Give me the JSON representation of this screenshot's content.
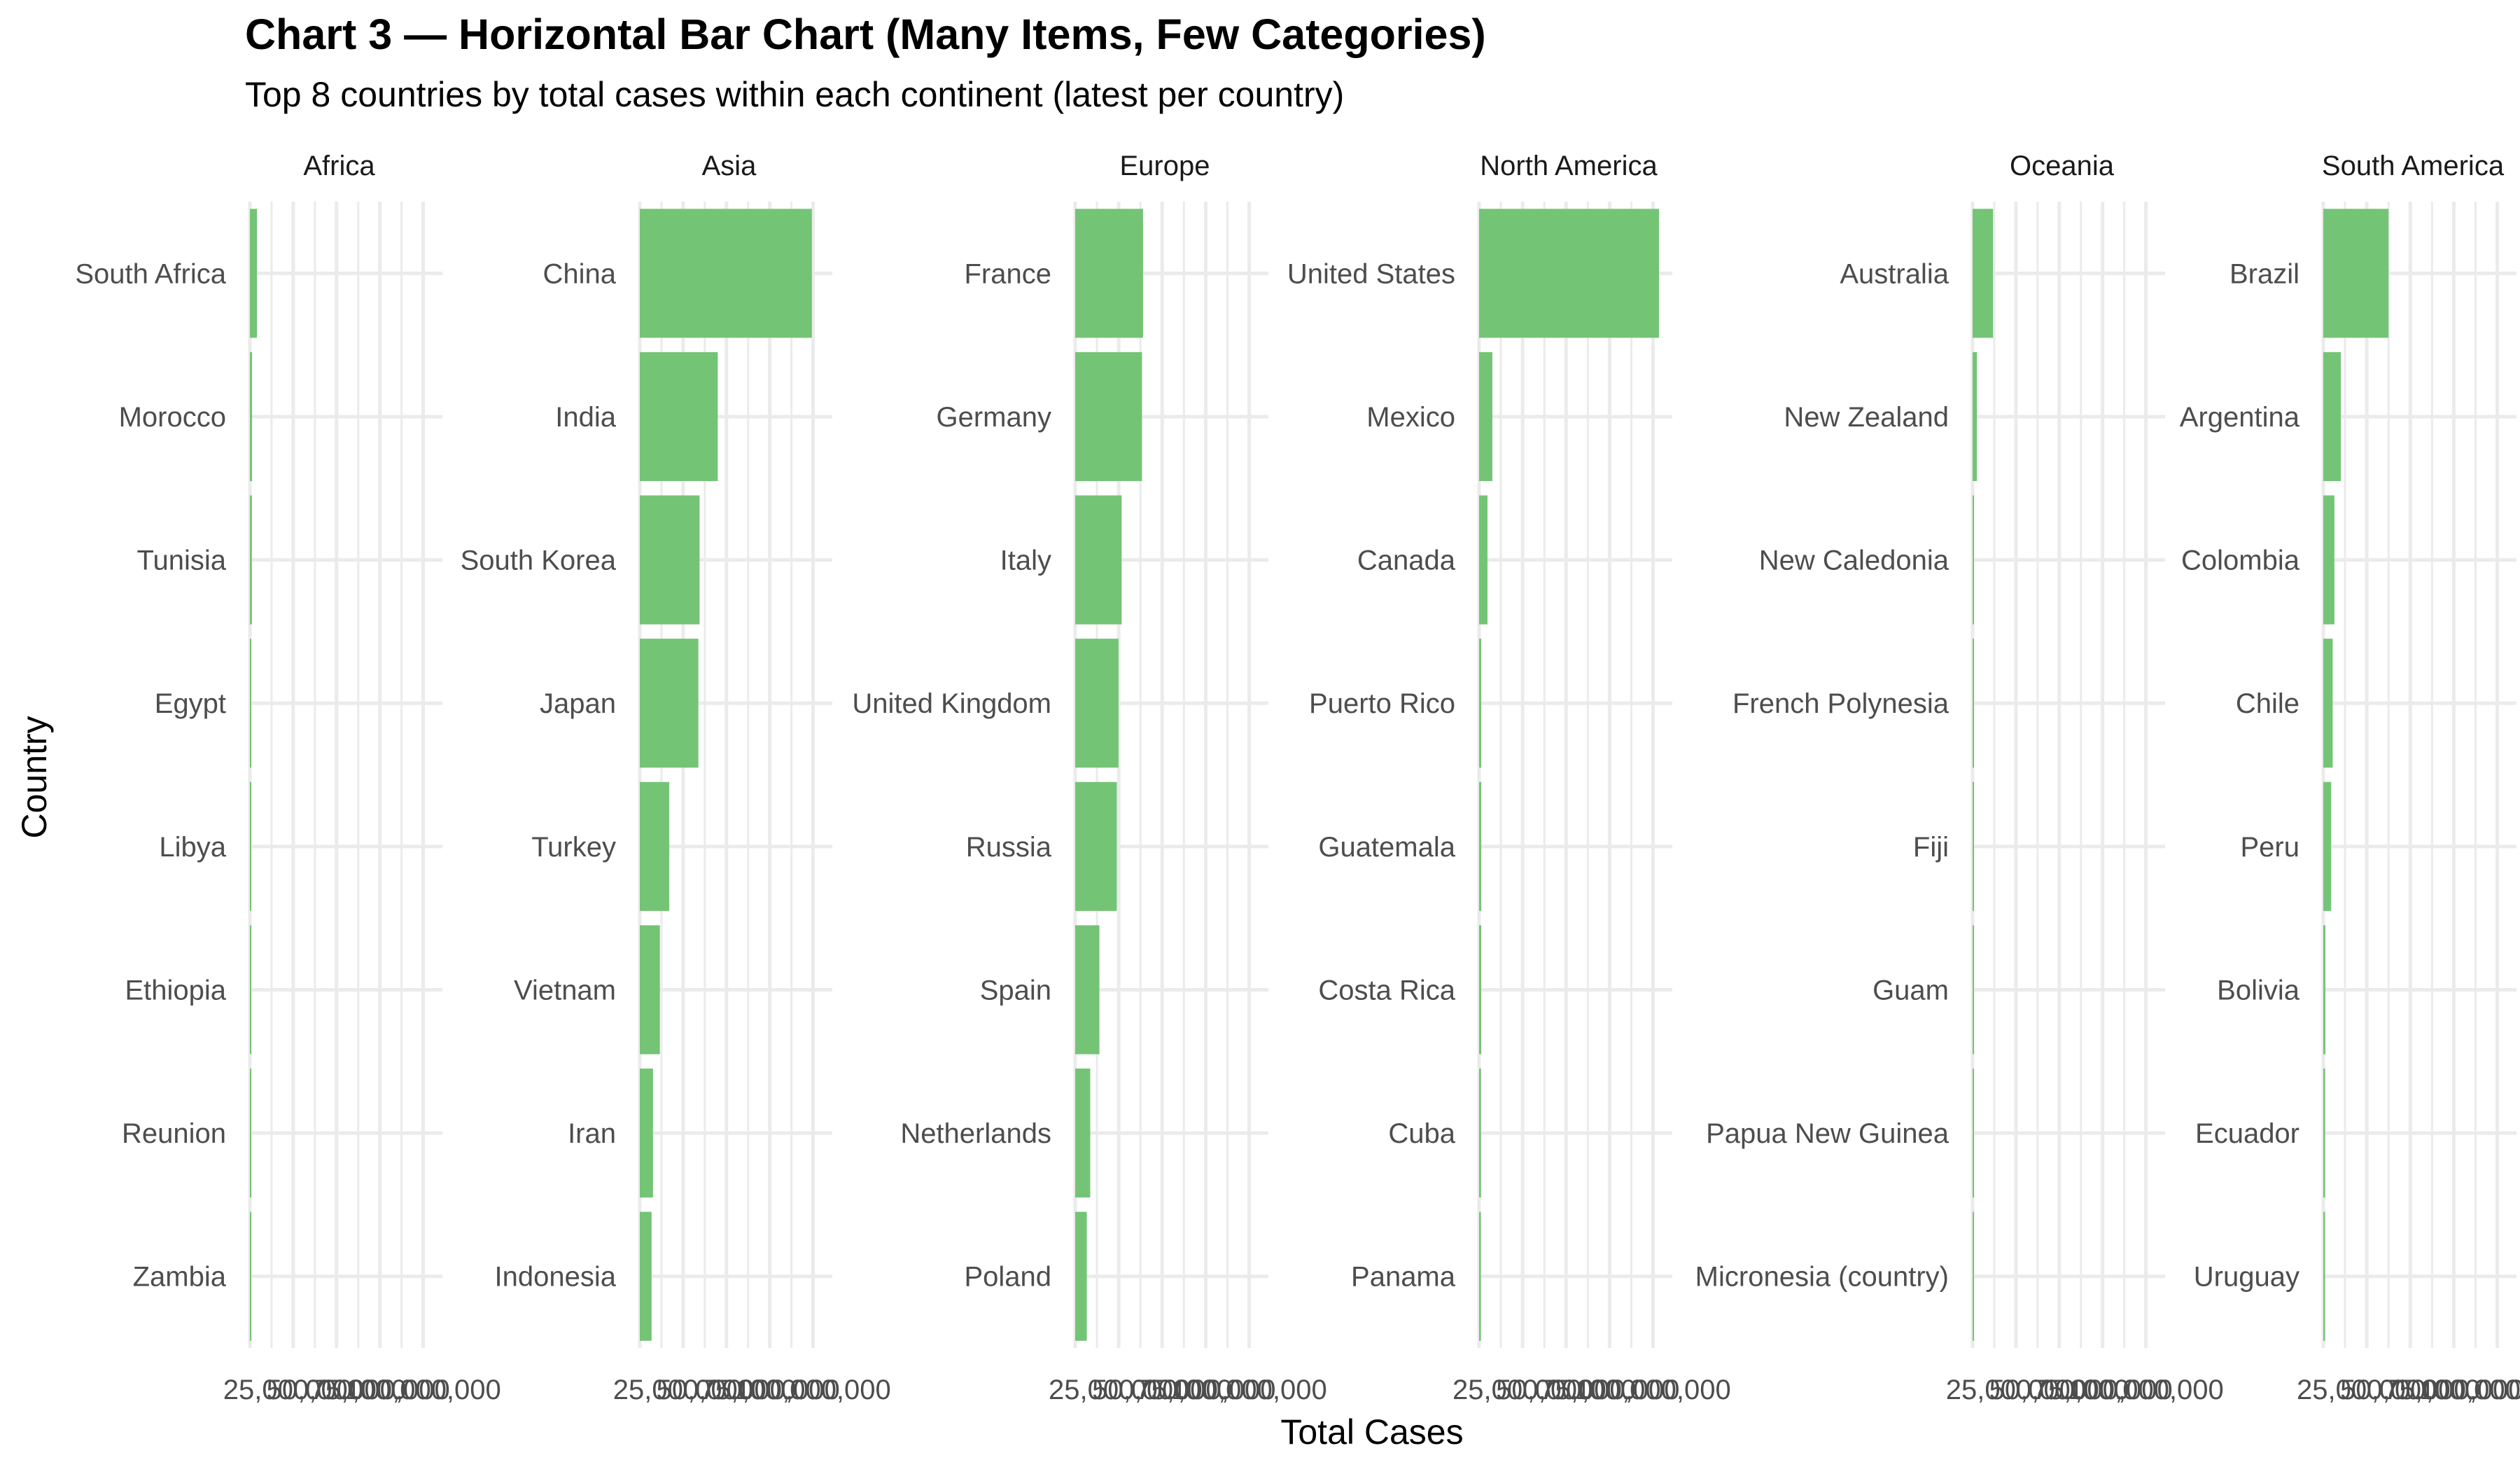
{
  "colors": {
    "bar": "#74C476",
    "grid": "#EBEBEB",
    "background": "#FFFFFF"
  },
  "chart_data": {
    "type": "bar",
    "orientation": "horizontal",
    "title": "Chart 3 — Horizontal Bar Chart (Many Items, Few Categories)",
    "subtitle": "Top 8 countries by total cases within each continent (latest per country)",
    "xlabel": "Total Cases",
    "ylabel": "Country",
    "xlim": [
      0,
      103000000
    ],
    "x_ticks": [
      25000000,
      50000000,
      75000000,
      100000000
    ],
    "x_tick_labels": [
      "25,000,000",
      "50,000,000",
      "75,000,000",
      "100,000,000"
    ],
    "grid": true,
    "legend": "none",
    "facets": [
      {
        "name": "Africa",
        "categories": [
          "South Africa",
          "Morocco",
          "Tunisia",
          "Egypt",
          "Libya",
          "Ethiopia",
          "Reunion",
          "Zambia"
        ],
        "values": [
          4070000,
          1270000,
          1150000,
          516000,
          507000,
          500000,
          494000,
          349000
        ]
      },
      {
        "name": "Asia",
        "categories": [
          "China",
          "India",
          "South Korea",
          "Japan",
          "Turkey",
          "Vietnam",
          "Iran",
          "Indonesia"
        ],
        "values": [
          99300000,
          45000000,
          34500000,
          33800000,
          17000000,
          11600000,
          7620000,
          6810000
        ]
      },
      {
        "name": "Europe",
        "categories": [
          "France",
          "Germany",
          "Italy",
          "United Kingdom",
          "Russia",
          "Spain",
          "Netherlands",
          "Poland"
        ],
        "values": [
          39000000,
          38400000,
          26700000,
          24900000,
          23900000,
          13900000,
          8640000,
          6670000
        ]
      },
      {
        "name": "North America",
        "categories": [
          "United States",
          "Mexico",
          "Canada",
          "Puerto Rico",
          "Guatemala",
          "Costa Rica",
          "Cuba",
          "Panama"
        ],
        "values": [
          103400000,
          7620000,
          4820000,
          1250000,
          1250000,
          1230000,
          1110000,
          1040000
        ]
      },
      {
        "name": "Oceania",
        "categories": [
          "Australia",
          "New Zealand",
          "New Caledonia",
          "French Polynesia",
          "Fiji",
          "Guam",
          "Papua New Guinea",
          "Micronesia (country)"
        ],
        "values": [
          11800000,
          2500000,
          80000,
          79000,
          69000,
          52000,
          47000,
          26000
        ]
      },
      {
        "name": "South America",
        "categories": [
          "Brazil",
          "Argentina",
          "Colombia",
          "Chile",
          "Peru",
          "Bolivia",
          "Ecuador",
          "Uruguay"
        ],
        "values": [
          37500000,
          10100000,
          6390000,
          5400000,
          4520000,
          1200000,
          1070000,
          1040000
        ]
      }
    ]
  }
}
